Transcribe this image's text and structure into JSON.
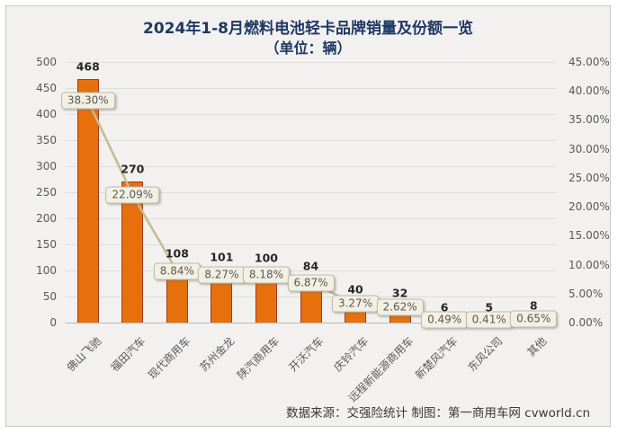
{
  "chart": {
    "title": "2024年1-8月燃料电池轻卡品牌销量及份额一览",
    "subtitle": "（单位：辆）",
    "footer": "数据来源：交强险统计 制图：第一商用车网 cvworld.cn",
    "colors": {
      "background": "#F2F1EF",
      "frame_border": "#C8C7C3",
      "title_text": "#1F3864",
      "axis_text": "#595959",
      "gridline": "#DEDDD9",
      "axis_line": "#BDBBB5",
      "bar_fill": "#E7700C",
      "bar_border": "#A03C22",
      "line": "#C5BB93",
      "value_text": "#262626",
      "label_box_bg": "#F2EFE3",
      "label_box_border": "#BEBBAC"
    }
  },
  "chart_data": {
    "type": "bar",
    "combo_with_line": true,
    "title": "2024年1-8月燃料电池轻卡品牌销量及份额一览（单位：辆）",
    "categories": [
      "佛山飞驰",
      "福田汽车",
      "现代商用车",
      "苏州金龙",
      "陕汽商用车",
      "开沃汽车",
      "庆铃汽车",
      "远程新能源商用车",
      "新楚风汽车",
      "东风公司",
      "其他"
    ],
    "series": [
      {
        "name": "销量",
        "type": "bar",
        "axis": "left",
        "values": [
          468,
          270,
          108,
          101,
          100,
          84,
          40,
          32,
          6,
          5,
          8
        ]
      },
      {
        "name": "份额",
        "type": "line",
        "axis": "right",
        "values": [
          38.3,
          22.09,
          8.84,
          8.27,
          8.18,
          6.87,
          3.27,
          2.62,
          0.49,
          0.41,
          0.65
        ],
        "labels": [
          "38.30%",
          "22.09%",
          "8.84%",
          "8.27%",
          "8.18%",
          "6.87%",
          "3.27%",
          "2.62%",
          "0.49%",
          "0.41%",
          "0.65%"
        ]
      }
    ],
    "left_axis": {
      "min": 0,
      "max": 500,
      "step": 50,
      "tick_labels": [
        "0",
        "50",
        "100",
        "150",
        "200",
        "250",
        "300",
        "350",
        "400",
        "450",
        "500"
      ]
    },
    "right_axis": {
      "min": 0,
      "max": 45,
      "step": 5,
      "tick_labels": [
        "45.00%",
        "40.00%",
        "35.00%",
        "30.00%",
        "25.00%",
        "20.00%",
        "15.00%",
        "10.00%",
        "5.00%",
        "0.00%"
      ]
    },
    "grid": true,
    "legend": "none"
  }
}
